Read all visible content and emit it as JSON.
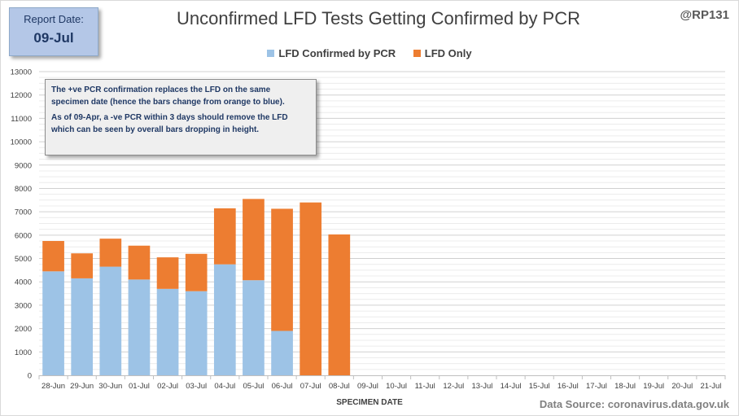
{
  "report": {
    "label": "Report Date:",
    "date": "09-Jul"
  },
  "handle": "@RP131",
  "source": "Data Source: coronavirus.data.gov.uk",
  "annotation": {
    "p1": "The +ve PCR confirmation replaces the LFD on the same specimen date (hence the bars change from orange to blue).",
    "p2": "As of 09-Apr, a -ve PCR within 3 days should remove the LFD which can be seen by overall bars dropping  in height."
  },
  "colors": {
    "confirmed": "#9dc3e6",
    "lfd_only": "#ed7d31",
    "grid": "#d9d9d9"
  },
  "chart_data": {
    "type": "bar",
    "stacked": true,
    "title": "Unconfirmed LFD Tests Getting Confirmed by PCR",
    "xlabel": "SPECIMEN DATE",
    "ylabel": "",
    "ylim": [
      0,
      13000
    ],
    "yticks": [
      0,
      1000,
      2000,
      3000,
      4000,
      5000,
      6000,
      7000,
      8000,
      9000,
      10000,
      11000,
      12000,
      13000
    ],
    "grid": true,
    "legend_position": "top",
    "categories": [
      "28-Jun",
      "29-Jun",
      "30-Jun",
      "01-Jul",
      "02-Jul",
      "03-Jul",
      "04-Jul",
      "05-Jul",
      "06-Jul",
      "07-Jul",
      "08-Jul",
      "09-Jul",
      "10-Jul",
      "11-Jul",
      "12-Jul",
      "13-Jul",
      "14-Jul",
      "15-Jul",
      "16-Jul",
      "17-Jul",
      "18-Jul",
      "19-Jul",
      "20-Jul",
      "21-Jul"
    ],
    "series": [
      {
        "name": "LFD Confirmed by PCR",
        "color": "#9dc3e6",
        "values": [
          4450,
          4150,
          4650,
          4100,
          3700,
          3600,
          4750,
          4070,
          1900,
          0,
          0,
          0,
          0,
          0,
          0,
          0,
          0,
          0,
          0,
          0,
          0,
          0,
          0,
          0
        ]
      },
      {
        "name": "LFD Only",
        "color": "#ed7d31",
        "values": [
          1300,
          1070,
          1200,
          1450,
          1350,
          1600,
          2400,
          3480,
          5230,
          7400,
          6030,
          0,
          0,
          0,
          0,
          0,
          0,
          0,
          0,
          0,
          0,
          0,
          0,
          0
        ]
      }
    ]
  }
}
